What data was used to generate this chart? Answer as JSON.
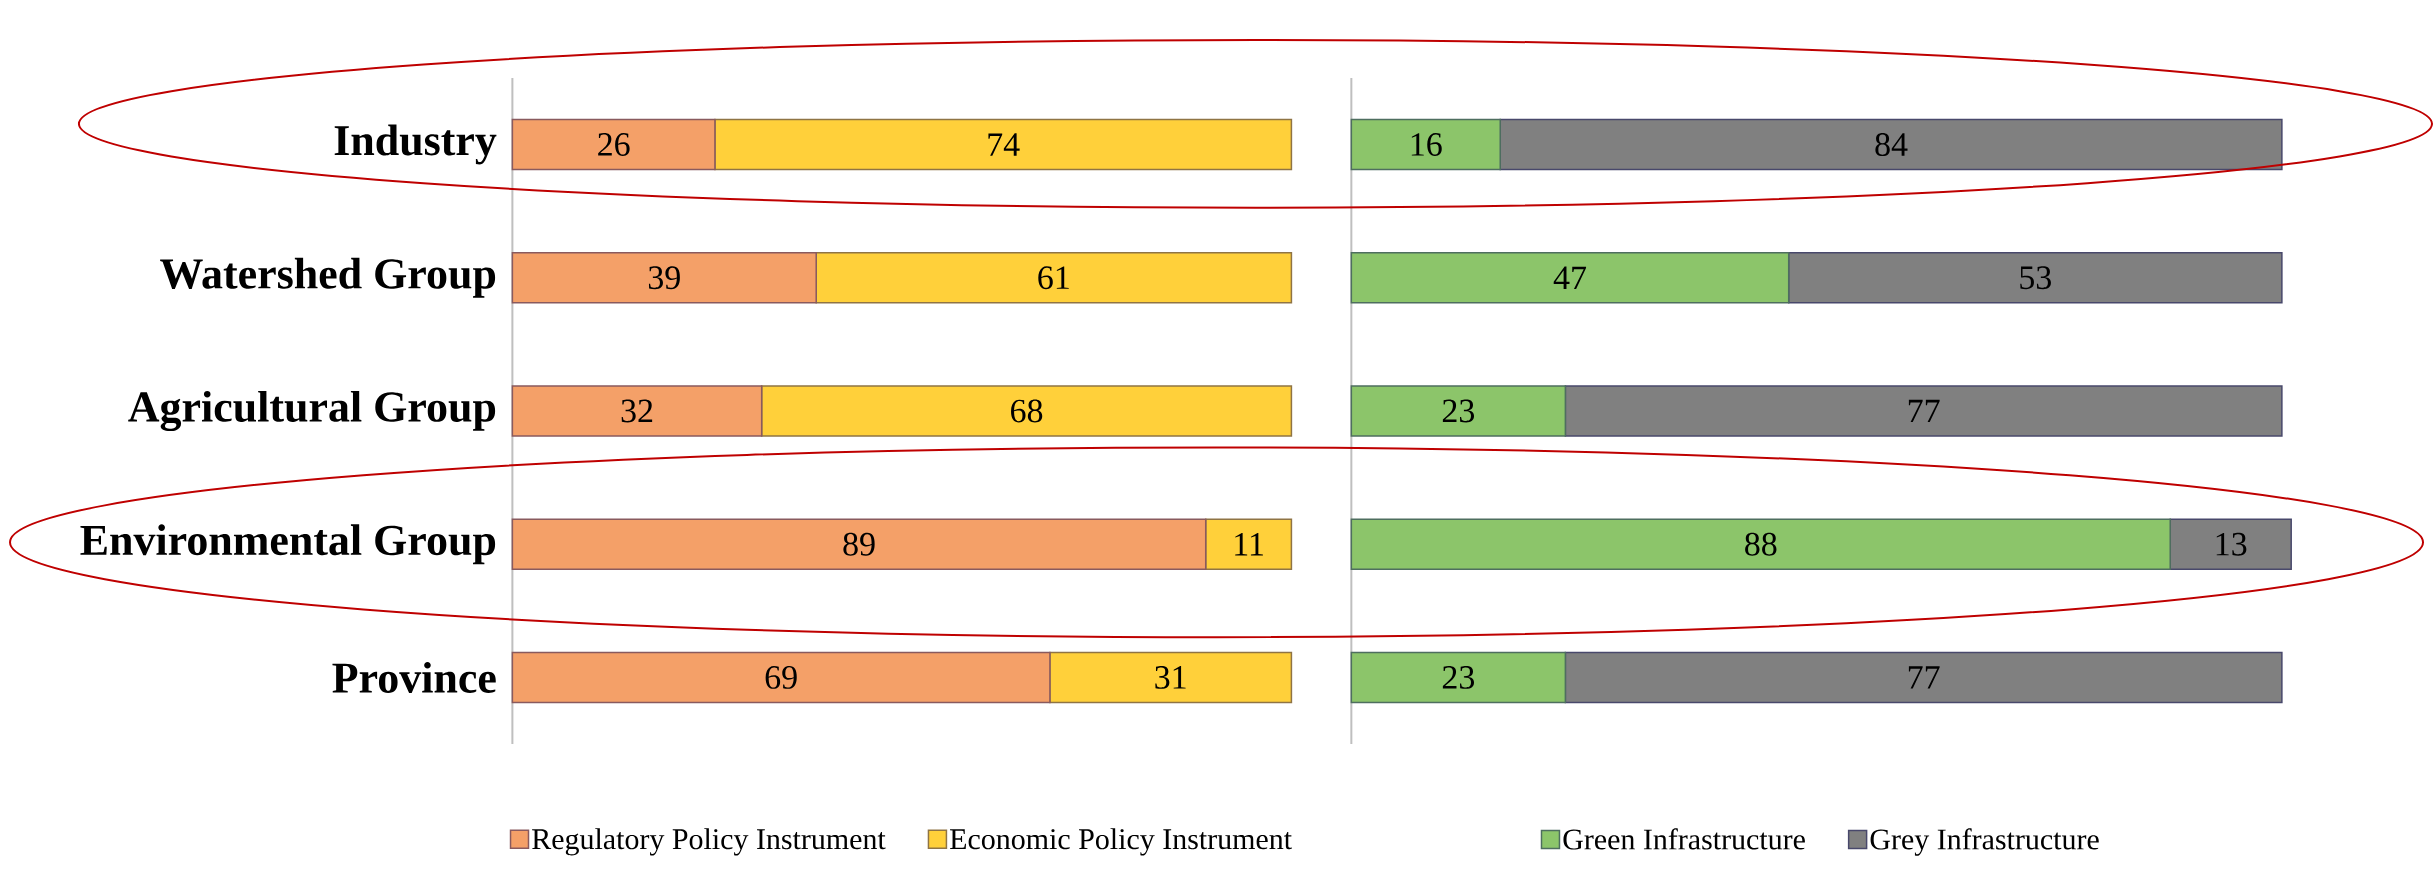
{
  "chart_data": [
    {
      "type": "bar",
      "orientation": "horizontal",
      "stacked": true,
      "categories": [
        "Industry",
        "Watershed Group",
        "Agricultural Group",
        "Environmental Group",
        "Province"
      ],
      "data_labels": true,
      "legend": "bottom",
      "tick_labels": "y",
      "series": [
        {
          "name": "Regulatory Policy Instrument",
          "color": "#f4a068",
          "values": [
            26,
            39,
            32,
            89,
            69
          ]
        },
        {
          "name": "Economic Policy Instrument",
          "color": "#ffd03a",
          "values": [
            74,
            61,
            68,
            11,
            31
          ]
        }
      ]
    },
    {
      "type": "bar",
      "orientation": "horizontal",
      "stacked": true,
      "categories": [
        null,
        null,
        null,
        null,
        null
      ],
      "data_labels": true,
      "legend": "bottom",
      "tick_labels": false,
      "series": [
        {
          "name": "Green Infrastructure",
          "color": "#8cc56a",
          "values": [
            16,
            47,
            23,
            88,
            23
          ]
        },
        {
          "name": "Grey Infrastructure",
          "color": "#808080",
          "values": [
            84,
            53,
            77,
            13,
            77
          ]
        }
      ]
    }
  ]
}
